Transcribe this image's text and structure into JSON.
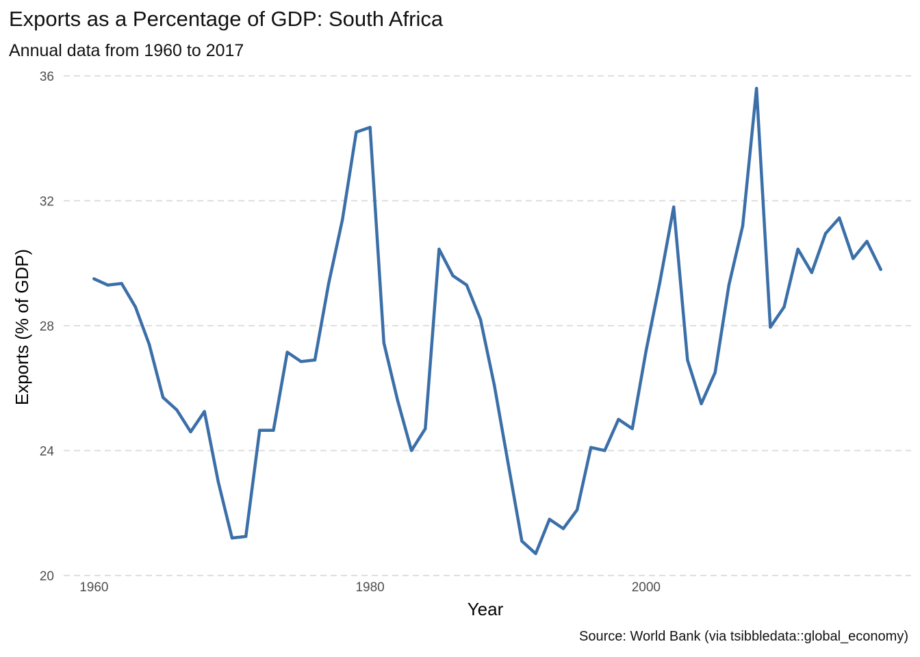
{
  "chart_data": {
    "type": "line",
    "title": "Exports as a Percentage of GDP: South Africa",
    "subtitle": "Annual data from 1960 to 2017",
    "caption": "Source: World Bank (via tsibbledata::global_economy)",
    "xlabel": "Year",
    "ylabel": "Exports (% of GDP)",
    "x_ticks": [
      1960,
      1980,
      2000
    ],
    "y_ticks": [
      20,
      24,
      28,
      32,
      36
    ],
    "xlim": [
      1957.8,
      2019.2
    ],
    "ylim": [
      19.8,
      36.5
    ],
    "grid": "horizontal dashed",
    "color": "#3b6fa8",
    "x": [
      1960,
      1961,
      1962,
      1963,
      1964,
      1965,
      1966,
      1967,
      1968,
      1969,
      1970,
      1971,
      1972,
      1973,
      1974,
      1975,
      1976,
      1977,
      1978,
      1979,
      1980,
      1981,
      1982,
      1983,
      1984,
      1985,
      1986,
      1987,
      1988,
      1989,
      1990,
      1991,
      1992,
      1993,
      1994,
      1995,
      1996,
      1997,
      1998,
      1999,
      2000,
      2001,
      2002,
      2003,
      2004,
      2005,
      2006,
      2007,
      2008,
      2009,
      2010,
      2011,
      2012,
      2013,
      2014,
      2015,
      2016,
      2017
    ],
    "values": [
      29.5,
      29.3,
      29.35,
      28.6,
      27.4,
      25.7,
      25.3,
      24.6,
      25.25,
      23.0,
      21.2,
      21.25,
      24.65,
      24.65,
      27.15,
      26.85,
      26.9,
      29.35,
      31.4,
      34.2,
      34.35,
      27.45,
      25.6,
      24.0,
      24.7,
      30.45,
      29.6,
      29.3,
      28.2,
      26.1,
      23.6,
      21.1,
      20.7,
      21.8,
      21.5,
      22.1,
      24.1,
      24.0,
      25.0,
      24.7,
      27.2,
      29.4,
      31.8,
      26.9,
      25.5,
      26.5,
      29.3,
      31.2,
      35.6,
      27.95,
      28.6,
      30.45,
      29.7,
      30.95,
      31.45,
      30.15,
      30.7,
      29.8
    ]
  }
}
